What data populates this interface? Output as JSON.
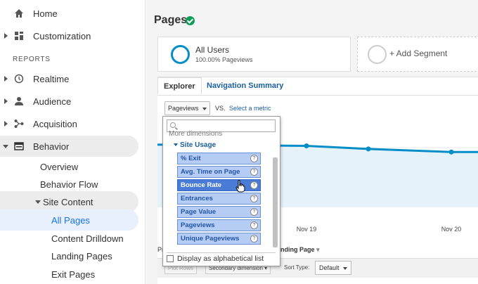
{
  "sidebar": {
    "items": [
      {
        "label": "Home"
      },
      {
        "label": "Customization"
      }
    ],
    "section_header": "REPORTS",
    "reports": [
      {
        "label": "Realtime"
      },
      {
        "label": "Audience"
      },
      {
        "label": "Acquisition"
      },
      {
        "label": "Behavior"
      }
    ],
    "behavior_sub": [
      {
        "label": "Overview"
      },
      {
        "label": "Behavior Flow"
      },
      {
        "label": "Site Content"
      }
    ],
    "site_content_sub": [
      {
        "label": "All Pages"
      },
      {
        "label": "Content Drilldown"
      },
      {
        "label": "Landing Pages"
      },
      {
        "label": "Exit Pages"
      }
    ]
  },
  "header": {
    "title": "Pages"
  },
  "segments": {
    "seg1_title": "All Users",
    "seg1_sub": "100.00% Pageviews",
    "add_segment": "+ Add Segment"
  },
  "tabs": {
    "explorer": "Explorer",
    "navigation": "Navigation Summary"
  },
  "metric": {
    "selected": "Pageviews",
    "vs": "VS.",
    "select_metric": "Select a metric"
  },
  "chart_data": {
    "type": "line",
    "x": [
      "",
      "Nov 19",
      "",
      "Nov 20"
    ],
    "series": [
      {
        "values": [
          1.02,
          1.0,
          0.95,
          0.9
        ]
      }
    ],
    "xlabel": "",
    "ylabel": "",
    "ylim": [
      0,
      1.2
    ],
    "tick_labels": [
      "Nov 19",
      "Nov 20"
    ]
  },
  "table": {
    "primary_dim_prefix": "Pr",
    "landing_label": "anding Page",
    "plot_rows": "Plot Rows",
    "secondary_dim": "Secondary dimension",
    "sort_type": "Sort Type:",
    "sort_default": "Default"
  },
  "dropdown": {
    "search_placeholder": "",
    "more_dimensions": "More dimensions",
    "group": "Site Usage",
    "items": [
      {
        "label": "% Exit"
      },
      {
        "label": "Avg. Time on Page"
      },
      {
        "label": "Bounce Rate"
      },
      {
        "label": "Entrances"
      },
      {
        "label": "Page Value"
      },
      {
        "label": "Pageviews"
      },
      {
        "label": "Unique Pageviews"
      }
    ],
    "alpha_label": "Display as alphabetical list"
  },
  "colors": {
    "accent": "#058dc7",
    "link": "#1a5fa0",
    "highlight": "#4a7bd6"
  }
}
